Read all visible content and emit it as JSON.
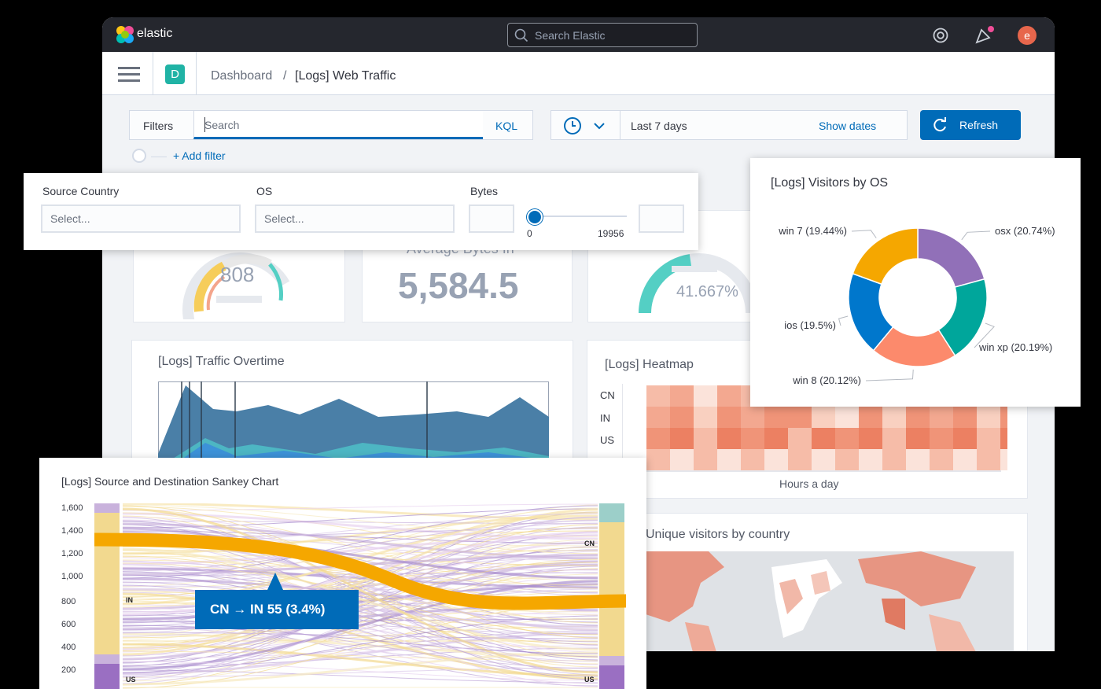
{
  "topbar": {
    "logo": "elastic",
    "search_placeholder": "Search Elastic",
    "user_initial": "e"
  },
  "breadcrumb": {
    "app_initial": "D",
    "parent": "Dashboard",
    "separator": "/",
    "current": "[Logs] Web Traffic"
  },
  "query_bar": {
    "filters_label": "Filters",
    "search_placeholder": "Search",
    "language": "KQL",
    "time_range": "Last 7 days",
    "show_dates": "Show dates",
    "refresh": "Refresh",
    "add_filter": "+ Add filter"
  },
  "controls": {
    "source_country": {
      "label": "Source Country",
      "placeholder": "Select..."
    },
    "os": {
      "label": "OS",
      "placeholder": "Select..."
    },
    "bytes": {
      "label": "Bytes",
      "min": "0",
      "max": "19956",
      "value_fraction": 0
    }
  },
  "metrics": {
    "gauge1": "808",
    "avg_bytes_label": "Average Bytes In",
    "avg_bytes": "5,584.5",
    "gauge2": "41.667%"
  },
  "traffic": {
    "title": "[Logs] Traffic Overtime"
  },
  "heatmap": {
    "title": "[Logs] Heatmap",
    "rows": [
      "CN",
      "IN",
      "US"
    ],
    "xlabel": "Hours a day"
  },
  "map": {
    "title": "Unique visitors by country"
  },
  "visitors_os": {
    "title": "[Logs] Visitors by OS",
    "chart_data": {
      "type": "pie",
      "slices": [
        {
          "label": "osx (20.74%)",
          "value": 20.74,
          "color": "#9170b8"
        },
        {
          "label": "win xp (20.19%)",
          "value": 20.19,
          "color": "#00a69b"
        },
        {
          "label": "win 8 (20.12%)",
          "value": 20.12,
          "color": "#fc8a6c"
        },
        {
          "label": "ios (19.5%)",
          "value": 19.5,
          "color": "#0077cc"
        },
        {
          "label": "win 7 (19.44%)",
          "value": 19.44,
          "color": "#f5a700"
        }
      ]
    }
  },
  "sankey": {
    "title": "[Logs] Source and Destination Sankey Chart",
    "yticks": [
      "1,600",
      "1,400",
      "1,200",
      "1,000",
      "800",
      "600",
      "400",
      "200"
    ],
    "nodes_left": [
      "IN",
      "US"
    ],
    "nodes_right": [
      "CN",
      "US"
    ],
    "tooltip": "CN → IN 55 (3.4%)"
  },
  "colors": {
    "primary": "#006bb8",
    "accent": "#f5a700",
    "dark": "#25272e"
  }
}
